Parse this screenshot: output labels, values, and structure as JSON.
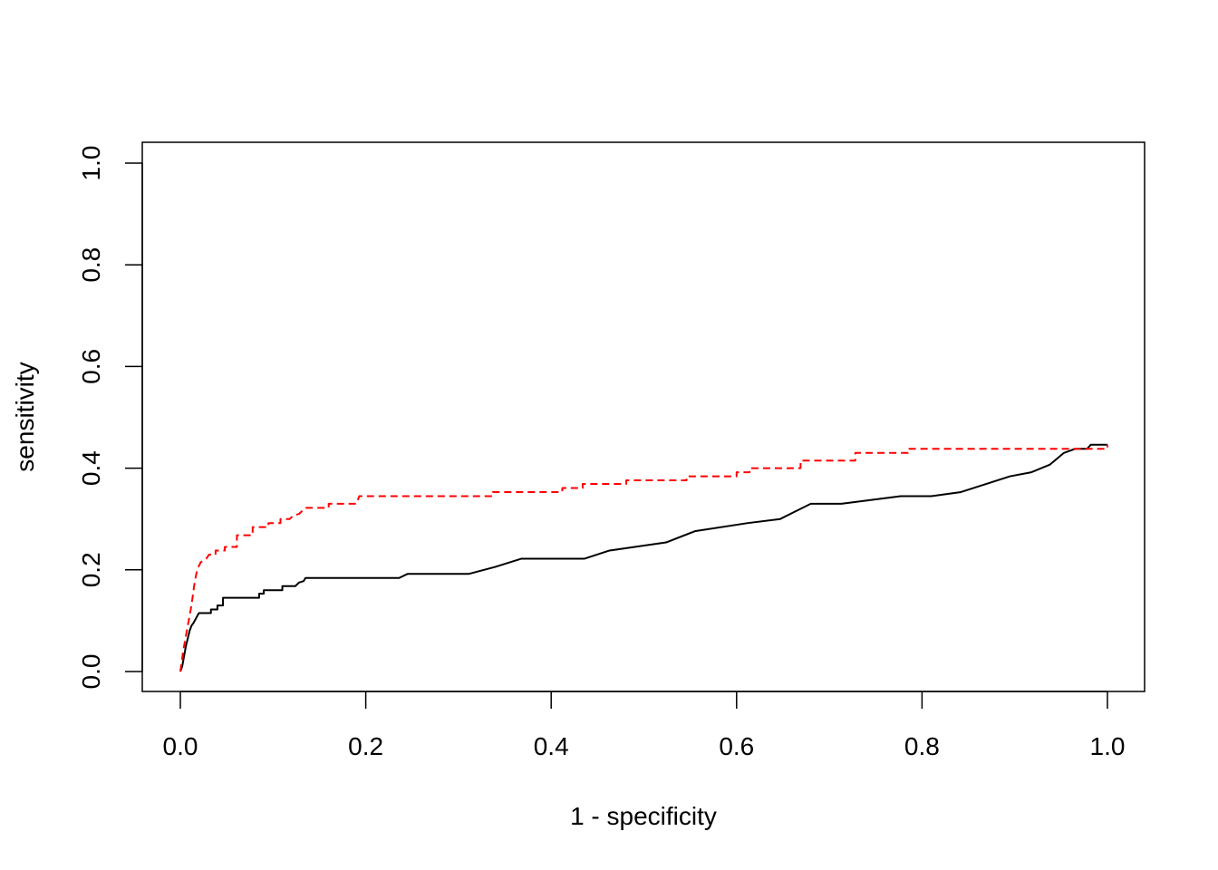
{
  "chart_data": {
    "type": "line",
    "title": "",
    "xlabel": "1 - specificity",
    "ylabel": "sensitivity",
    "xlim": [
      0.0,
      1.0
    ],
    "ylim": [
      0.0,
      1.0
    ],
    "x_ticks": [
      "0.0",
      "0.2",
      "0.4",
      "0.6",
      "0.8",
      "1.0"
    ],
    "y_ticks": [
      "0.0",
      "0.2",
      "0.4",
      "0.6",
      "0.8",
      "1.0"
    ],
    "grid": false,
    "legend": "none",
    "series": [
      {
        "color": "#000000",
        "dash": "solid",
        "points": [
          [
            0.0,
            0.0
          ],
          [
            0.002,
            0.01
          ],
          [
            0.004,
            0.03
          ],
          [
            0.006,
            0.05
          ],
          [
            0.008,
            0.065
          ],
          [
            0.01,
            0.08
          ],
          [
            0.012,
            0.09
          ],
          [
            0.014,
            0.095
          ],
          [
            0.017,
            0.105
          ],
          [
            0.02,
            0.115
          ],
          [
            0.033,
            0.115
          ],
          [
            0.033,
            0.122
          ],
          [
            0.04,
            0.122
          ],
          [
            0.04,
            0.13
          ],
          [
            0.046,
            0.13
          ],
          [
            0.046,
            0.145
          ],
          [
            0.085,
            0.145
          ],
          [
            0.085,
            0.153
          ],
          [
            0.09,
            0.153
          ],
          [
            0.09,
            0.16
          ],
          [
            0.11,
            0.16
          ],
          [
            0.11,
            0.168
          ],
          [
            0.124,
            0.168
          ],
          [
            0.128,
            0.175
          ],
          [
            0.133,
            0.178
          ],
          [
            0.135,
            0.184
          ],
          [
            0.236,
            0.184
          ],
          [
            0.245,
            0.192
          ],
          [
            0.311,
            0.192
          ],
          [
            0.34,
            0.206
          ],
          [
            0.368,
            0.222
          ],
          [
            0.436,
            0.222
          ],
          [
            0.463,
            0.238
          ],
          [
            0.524,
            0.254
          ],
          [
            0.555,
            0.276
          ],
          [
            0.612,
            0.292
          ],
          [
            0.647,
            0.3
          ],
          [
            0.68,
            0.33
          ],
          [
            0.713,
            0.33
          ],
          [
            0.777,
            0.345
          ],
          [
            0.81,
            0.345
          ],
          [
            0.842,
            0.353
          ],
          [
            0.895,
            0.384
          ],
          [
            0.918,
            0.392
          ],
          [
            0.938,
            0.407
          ],
          [
            0.953,
            0.43
          ],
          [
            0.965,
            0.438
          ],
          [
            0.978,
            0.438
          ],
          [
            0.982,
            0.446
          ],
          [
            1.0,
            0.446
          ]
        ]
      },
      {
        "color": "#ff0000",
        "dash": "dashed",
        "points": [
          [
            0.0,
            0.0
          ],
          [
            0.003,
            0.04
          ],
          [
            0.006,
            0.07
          ],
          [
            0.009,
            0.1
          ],
          [
            0.012,
            0.13
          ],
          [
            0.015,
            0.17
          ],
          [
            0.018,
            0.2
          ],
          [
            0.022,
            0.215
          ],
          [
            0.028,
            0.222
          ],
          [
            0.031,
            0.23
          ],
          [
            0.038,
            0.23
          ],
          [
            0.038,
            0.238
          ],
          [
            0.048,
            0.238
          ],
          [
            0.048,
            0.245
          ],
          [
            0.061,
            0.245
          ],
          [
            0.061,
            0.268
          ],
          [
            0.078,
            0.268
          ],
          [
            0.078,
            0.284
          ],
          [
            0.095,
            0.284
          ],
          [
            0.095,
            0.292
          ],
          [
            0.108,
            0.292
          ],
          [
            0.108,
            0.3
          ],
          [
            0.118,
            0.3
          ],
          [
            0.122,
            0.307
          ],
          [
            0.128,
            0.31
          ],
          [
            0.135,
            0.322
          ],
          [
            0.16,
            0.322
          ],
          [
            0.16,
            0.33
          ],
          [
            0.19,
            0.33
          ],
          [
            0.193,
            0.345
          ],
          [
            0.337,
            0.345
          ],
          [
            0.337,
            0.353
          ],
          [
            0.412,
            0.353
          ],
          [
            0.412,
            0.361
          ],
          [
            0.434,
            0.361
          ],
          [
            0.434,
            0.369
          ],
          [
            0.481,
            0.369
          ],
          [
            0.481,
            0.376
          ],
          [
            0.546,
            0.376
          ],
          [
            0.546,
            0.384
          ],
          [
            0.6,
            0.384
          ],
          [
            0.6,
            0.392
          ],
          [
            0.614,
            0.392
          ],
          [
            0.614,
            0.4
          ],
          [
            0.669,
            0.4
          ],
          [
            0.669,
            0.415
          ],
          [
            0.728,
            0.415
          ],
          [
            0.728,
            0.43
          ],
          [
            0.785,
            0.43
          ],
          [
            0.785,
            0.438
          ],
          [
            1.0,
            0.438
          ],
          [
            1.0,
            0.446
          ]
        ]
      }
    ]
  }
}
